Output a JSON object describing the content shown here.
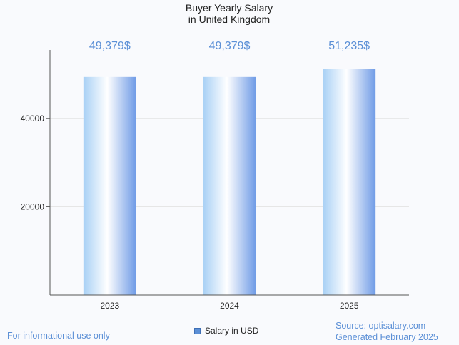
{
  "chart_data": {
    "type": "bar",
    "title_line1": "Buyer Yearly Salary",
    "title_line2": "in United Kingdom",
    "categories": [
      "2023",
      "2024",
      "2025"
    ],
    "series": [
      {
        "name": "Salary in USD",
        "values": [
          49379,
          49379,
          51235
        ]
      }
    ],
    "data_labels": [
      "49,379$",
      "49,379$",
      "51,235$"
    ],
    "yticks": [
      20000,
      40000
    ],
    "ylim": [
      0,
      55500
    ],
    "xlabel": "",
    "ylabel": "",
    "grid": true,
    "legend": "bottom-center"
  },
  "colors": {
    "accent": "#5b8fd6",
    "bar_light": "#ffffff",
    "bar_edge_left": "#a8d0f5",
    "bar_edge_right": "#6f9be6"
  },
  "footer": {
    "disclaimer": "For informational use only",
    "source": "Source: optisalary.com",
    "generated": "Generated February 2025"
  }
}
